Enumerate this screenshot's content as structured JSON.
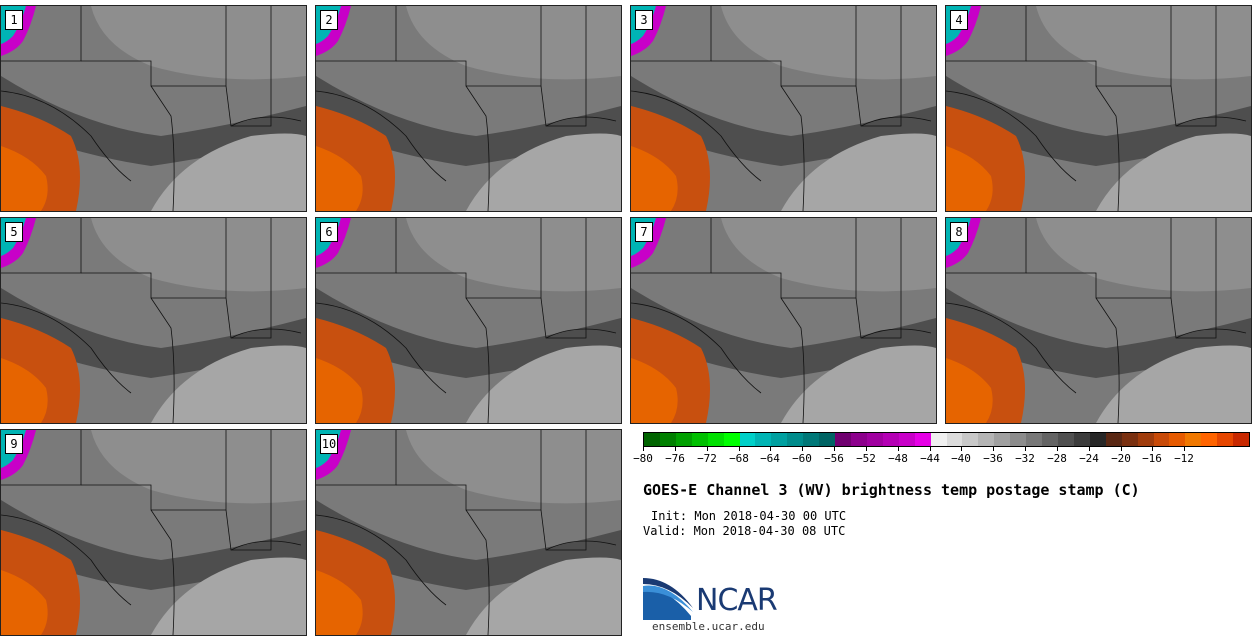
{
  "panels": [
    "1",
    "2",
    "3",
    "4",
    "5",
    "6",
    "7",
    "8",
    "9",
    "10"
  ],
  "colorbar": {
    "colors": [
      "#006400",
      "#008000",
      "#00a000",
      "#00c000",
      "#00e000",
      "#00ff00",
      "#00d0c8",
      "#00b4b4",
      "#00a0a0",
      "#008c8c",
      "#007878",
      "#006464",
      "#700070",
      "#8c008c",
      "#a000a0",
      "#b400b4",
      "#c800c8",
      "#e600e6",
      "#f0f0f0",
      "#dcdcdc",
      "#c8c8c8",
      "#b4b4b4",
      "#a0a0a0",
      "#8c8c8c",
      "#787878",
      "#646464",
      "#505050",
      "#3c3c3c",
      "#282828",
      "#5a2814",
      "#7a3010",
      "#a03c0c",
      "#c84a08",
      "#e65a00",
      "#f07800",
      "#ff6400",
      "#e64600",
      "#c82800"
    ],
    "tick_labels": [
      "-80",
      "-76",
      "-72",
      "-68",
      "-64",
      "-60",
      "-56",
      "-52",
      "-48",
      "-44",
      "-40",
      "-36",
      "-32",
      "-28",
      "-24",
      "-20",
      "-16",
      "-12"
    ]
  },
  "title": "GOES-E Channel 3 (WV) brightness temp postage stamp (C)",
  "init": "Init: Mon 2018-04-30 00 UTC",
  "valid": "Valid: Mon 2018-04-30 08 UTC",
  "logo_text": "NCAR",
  "url": "ensemble.ucar.edu"
}
